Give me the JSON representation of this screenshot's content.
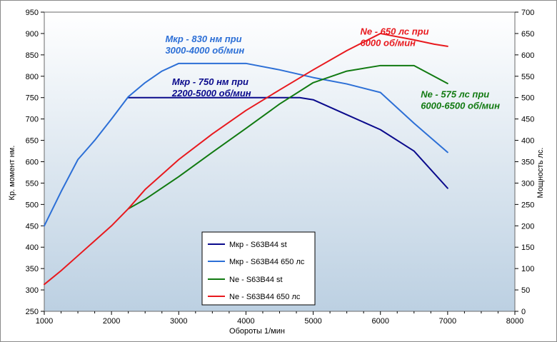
{
  "chart_data": {
    "type": "line",
    "xlabel": "Обороты  1/мин",
    "ylabel_left": "Кр. момент нм.",
    "ylabel_right": "Мощность  лс.",
    "xlim": [
      1000,
      8000
    ],
    "x_ticks": [
      1000,
      2000,
      3000,
      4000,
      5000,
      6000,
      7000,
      8000
    ],
    "ylim_left": [
      250,
      950
    ],
    "y_ticks_left": [
      250,
      300,
      350,
      400,
      450,
      500,
      550,
      600,
      650,
      700,
      750,
      800,
      850,
      900,
      950
    ],
    "ylim_right": [
      0,
      700
    ],
    "y_ticks_right": [
      0,
      50,
      100,
      150,
      200,
      250,
      300,
      350,
      400,
      450,
      500,
      550,
      600,
      650,
      700
    ],
    "grid": false,
    "legend_position": "bottom-center",
    "background_gradient": [
      "#ffffff",
      "#bcd0e2"
    ],
    "series": [
      {
        "name": "Мкр - S63B44 st",
        "axis": "left",
        "color": "#0a0a8c",
        "x": [
          2250,
          2500,
          3000,
          3500,
          4000,
          4500,
          4800,
          5000,
          5500,
          6000,
          6500,
          7000
        ],
        "y": [
          750,
          750,
          750,
          750,
          750,
          750,
          750,
          745,
          710,
          675,
          625,
          538
        ]
      },
      {
        "name": "Мкр - S63B44 650 лс",
        "axis": "left",
        "color": "#2c6fd6",
        "x": [
          1000,
          1250,
          1500,
          1750,
          2000,
          2250,
          2500,
          2750,
          3000,
          3500,
          4000,
          4500,
          5000,
          5500,
          6000,
          6500,
          7000
        ],
        "y": [
          450,
          530,
          605,
          650,
          700,
          752,
          785,
          812,
          830,
          830,
          830,
          815,
          797,
          782,
          762,
          690,
          622
        ]
      },
      {
        "name": "Ne -  S63B44  st",
        "axis": "right",
        "color": "#117a11",
        "x": [
          2250,
          2500,
          3000,
          3500,
          4000,
          4500,
          5000,
          5500,
          6000,
          6500,
          7000
        ],
        "y": [
          240,
          262,
          315,
          372,
          428,
          485,
          535,
          562,
          575,
          575,
          533
        ]
      },
      {
        "name": "Ne -  S63B44  650 лс",
        "axis": "right",
        "color": "#e8191e",
        "x": [
          1000,
          1250,
          1500,
          1750,
          2000,
          2250,
          2500,
          3000,
          3500,
          4000,
          4500,
          5000,
          5500,
          6000,
          6500,
          6800,
          7000
        ],
        "y": [
          63,
          95,
          130,
          165,
          200,
          240,
          285,
          355,
          415,
          470,
          518,
          565,
          610,
          650,
          635,
          625,
          620
        ]
      }
    ],
    "annotations": [
      {
        "lines": [
          "Мкр - 830 нм при",
          "3000-4000 об/мин"
        ],
        "color": "#2c6fd6"
      },
      {
        "lines": [
          "Мкр - 750 нм при",
          "2200-5000 об/мин"
        ],
        "color": "#0a0a8c"
      },
      {
        "lines": [
          "Ne - 650 лс при",
          "6000 об/мин"
        ],
        "color": "#e8191e"
      },
      {
        "lines": [
          "Ne - 575 лс при",
          "6000-6500 об/мин"
        ],
        "color": "#117a11"
      }
    ]
  }
}
